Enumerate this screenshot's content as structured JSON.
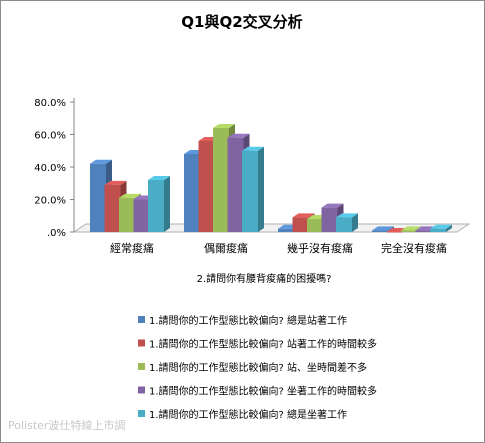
{
  "chart_data": {
    "type": "bar",
    "title": "Q1與Q2交叉分析",
    "xlabel": "2.請問你有腰背痠痛的困擾嗎?",
    "ylabel": "",
    "ylim": [
      0,
      80
    ],
    "yticks": [
      ".0%",
      "20.0%",
      "40.0%",
      "60.0%",
      "80.0%"
    ],
    "categories": [
      "經常痠痛",
      "偶爾痠痛",
      "幾乎沒有痠痛",
      "完全沒有痠痛"
    ],
    "series": [
      {
        "name": "1.請問你的工作型態比較偏向? 總是站著工作",
        "color": "#4f81bd",
        "values": [
          42,
          48,
          2,
          1
        ]
      },
      {
        "name": "1.請問你的工作型態比較偏向? 站著工作的時間較多",
        "color": "#c0504d",
        "values": [
          29,
          56,
          9,
          0
        ]
      },
      {
        "name": "1.請問你的工作型態比較偏向? 站、坐時間差不多",
        "color": "#9bbb59",
        "values": [
          21,
          64,
          8,
          1
        ]
      },
      {
        "name": "1.請問你的工作型態比較偏向? 坐著工作的時間較多",
        "color": "#8064a2",
        "values": [
          20,
          58,
          15,
          1
        ]
      },
      {
        "name": "1.請問你的工作型態比較偏向? 總是坐著工作",
        "color": "#4bacc6",
        "values": [
          32,
          50,
          9,
          2
        ]
      }
    ],
    "grid": false,
    "legend_position": "bottom"
  },
  "watermark": "Polister波仕特線上市調"
}
